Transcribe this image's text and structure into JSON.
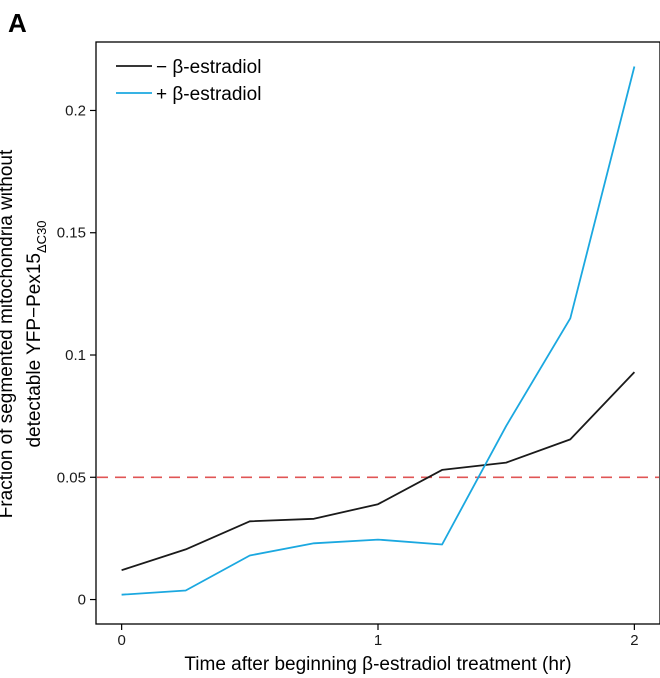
{
  "panel_label": "A",
  "chart_data": {
    "type": "line",
    "xlabel": "Time after beginning β-estradiol treatment (hr)",
    "ylabel_line1": "Fraction of segmented mitochondria without",
    "ylabel_line2_main": "detectable YFP−Pex15",
    "ylabel_line2_sub": "ΔC30",
    "xlim": [
      -0.1,
      2.1
    ],
    "ylim": [
      -0.01,
      0.228
    ],
    "x_ticks": [
      0,
      1,
      2
    ],
    "x_tick_labels": [
      "0",
      "1",
      "2"
    ],
    "y_ticks": [
      0,
      0.05,
      0.1,
      0.15,
      0.2
    ],
    "y_tick_labels": [
      "0",
      "0.05",
      "0.1",
      "0.15",
      "0.2"
    ],
    "grid": false,
    "legend_position": "top-left",
    "x": [
      0,
      0.25,
      0.5,
      0.75,
      1.0,
      1.25,
      1.5,
      1.75,
      2.0
    ],
    "series": [
      {
        "name": "− β-estradiol",
        "color": "#1a1a1a",
        "values": [
          0.012,
          0.0205,
          0.032,
          0.033,
          0.039,
          0.053,
          0.056,
          0.0655,
          0.093
        ]
      },
      {
        "name": "+ β-estradiol",
        "color": "#1ba8e0",
        "values": [
          0.002,
          0.0037,
          0.018,
          0.023,
          0.0245,
          0.0225,
          0.071,
          0.115,
          0.218
        ]
      }
    ],
    "reference_line": {
      "y": 0.05,
      "color": "#e05555",
      "style": "dashed"
    }
  }
}
